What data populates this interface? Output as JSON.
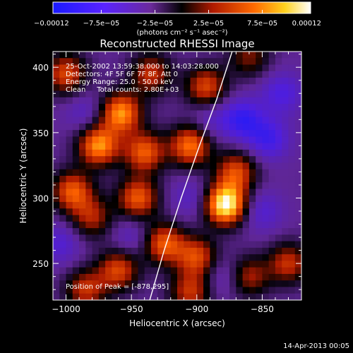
{
  "chart_data": {
    "type": "heatmap",
    "title": "Reconstructed RHESSI Image",
    "xlabel": "Heliocentric X (arcsec)",
    "ylabel": "Heliocentric Y (arcsec)",
    "xlim": [
      -1010,
      -820
    ],
    "ylim": [
      222,
      412
    ],
    "xticks": [
      {
        "value": -1000,
        "label": "−1000"
      },
      {
        "value": -950,
        "label": "−950"
      },
      {
        "value": -900,
        "label": "−900"
      },
      {
        "value": -850,
        "label": "−850"
      }
    ],
    "yticks": [
      {
        "value": 250,
        "label": "250"
      },
      {
        "value": 300,
        "label": "300"
      },
      {
        "value": 350,
        "label": "350"
      },
      {
        "value": 400,
        "label": "400"
      }
    ],
    "colorbar": {
      "range": [
        -0.00012,
        0.00012
      ],
      "ticks": [
        {
          "value": -0.00012,
          "label": "−0.00012"
        },
        {
          "value": -7.5e-05,
          "label": "−7.5e−05"
        },
        {
          "value": -2.5e-05,
          "label": "−2.5e−05"
        },
        {
          "value": 2.5e-05,
          "label": "2.5e−05"
        },
        {
          "value": 7.5e-05,
          "label": "7.5e−05"
        },
        {
          "value": 0.00012,
          "label": "0.00012"
        }
      ],
      "unit_label": "(photons cm⁻² s⁻¹ asec⁻²)"
    },
    "annotations": [
      "25-Oct-2002 13:59:38.000 to 14:03:28.000",
      "Detectors: 4F 5F 6F 7F 8F, Att 0",
      "Energy Range: 25.0 - 50.0 keV",
      "Clean     Total counts: 2.80E+03"
    ],
    "peak_label": "Position of Peak = [-878,295]",
    "peak": {
      "x": -878,
      "y": 295
    },
    "sources": [
      {
        "x": -878,
        "y": 295,
        "value": 0.00012
      },
      {
        "x": -958,
        "y": 365,
        "value": 8e-05
      },
      {
        "x": -975,
        "y": 340,
        "value": 8e-05
      },
      {
        "x": -940,
        "y": 335,
        "value": 6e-05
      },
      {
        "x": -905,
        "y": 340,
        "value": 7e-05
      },
      {
        "x": -995,
        "y": 305,
        "value": 6e-05
      },
      {
        "x": -1000,
        "y": 395,
        "value": 5e-05
      },
      {
        "x": -945,
        "y": 300,
        "value": 6e-05
      },
      {
        "x": -925,
        "y": 265,
        "value": 6e-05
      },
      {
        "x": -900,
        "y": 255,
        "value": 5e-05
      },
      {
        "x": -870,
        "y": 320,
        "value": 5e-05
      },
      {
        "x": -830,
        "y": 250,
        "value": 4e-05
      },
      {
        "x": -980,
        "y": 285,
        "value": 3e-05
      },
      {
        "x": -960,
        "y": 245,
        "value": 5e-05
      },
      {
        "x": -985,
        "y": 230,
        "value": 4e-05
      },
      {
        "x": -893,
        "y": 385,
        "value": 5e-05
      },
      {
        "x": -935,
        "y": 395,
        "value": 4e-05
      },
      {
        "x": -860,
        "y": 408,
        "value": 2e-05
      },
      {
        "x": -905,
        "y": 228,
        "value": 4e-05
      },
      {
        "x": -860,
        "y": 240,
        "value": 3e-05
      },
      {
        "x": -865,
        "y": 360,
        "value": -7e-05
      },
      {
        "x": -845,
        "y": 345,
        "value": -6e-05
      },
      {
        "x": -835,
        "y": 380,
        "value": -5e-05
      },
      {
        "x": -850,
        "y": 290,
        "value": -4e-05
      },
      {
        "x": -890,
        "y": 360,
        "value": -3e-05
      },
      {
        "x": -1005,
        "y": 265,
        "value": -4e-05
      },
      {
        "x": -905,
        "y": 300,
        "value": -3e-05
      },
      {
        "x": -950,
        "y": 270,
        "value": -3e-05
      },
      {
        "x": -985,
        "y": 365,
        "value": -3e-05
      },
      {
        "x": -880,
        "y": 240,
        "value": -3e-05
      }
    ],
    "limb_curve": [
      {
        "x": -936,
        "y": 222
      },
      {
        "x": -925,
        "y": 260
      },
      {
        "x": -912,
        "y": 300
      },
      {
        "x": -898,
        "y": 340
      },
      {
        "x": -885,
        "y": 375
      },
      {
        "x": -873,
        "y": 412
      }
    ]
  },
  "footer": {
    "timestamp": "14-Apr-2013 00:05"
  }
}
